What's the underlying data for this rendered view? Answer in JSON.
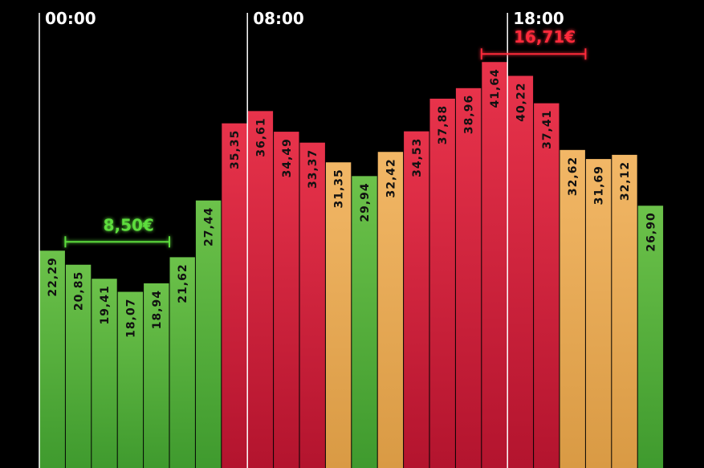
{
  "chart_data": {
    "type": "bar",
    "time_markers": [
      {
        "label": "00:00",
        "index": 0
      },
      {
        "label": "08:00",
        "index": 8
      },
      {
        "label": "18:00",
        "index": 18
      }
    ],
    "values": [
      22.29,
      20.85,
      19.41,
      18.07,
      18.94,
      21.62,
      27.44,
      35.35,
      36.61,
      34.49,
      33.37,
      31.35,
      29.94,
      32.42,
      34.53,
      37.88,
      38.96,
      41.64,
      40.22,
      37.41,
      32.62,
      31.69,
      32.12,
      26.9
    ],
    "value_labels": [
      "22,29",
      "20,85",
      "19,41",
      "18,07",
      "18,94",
      "21,62",
      "27,44",
      "35,35",
      "36,61",
      "34,49",
      "33,37",
      "31,35",
      "29,94",
      "32,42",
      "34,53",
      "37,88",
      "38,96",
      "41,64",
      "40,22",
      "37,41",
      "32,62",
      "31,69",
      "32,12",
      "26,90"
    ],
    "bar_colors": [
      "green",
      "green",
      "green",
      "green",
      "green",
      "green",
      "green",
      "red",
      "red",
      "red",
      "red",
      "orange",
      "green",
      "orange",
      "red",
      "red",
      "red",
      "red",
      "red",
      "red",
      "orange",
      "orange",
      "orange",
      "green"
    ],
    "ylim": [
      0,
      48
    ],
    "annotations": [
      {
        "label": "8,50€",
        "from_index": 1,
        "to_index": 5,
        "color": "green"
      },
      {
        "label": "16,71€",
        "from_index": 17,
        "to_index": 21,
        "color": "red"
      }
    ],
    "colors": {
      "green_top": "#6cc24a",
      "green_bottom": "#3f9a2e",
      "orange_top": "#f2b766",
      "orange_bottom": "#d99a44",
      "red_top": "#e8334b",
      "red_bottom": "#b3142e",
      "annotation_green": "#5ddc3c",
      "annotation_red": "#ff2a3a"
    }
  }
}
